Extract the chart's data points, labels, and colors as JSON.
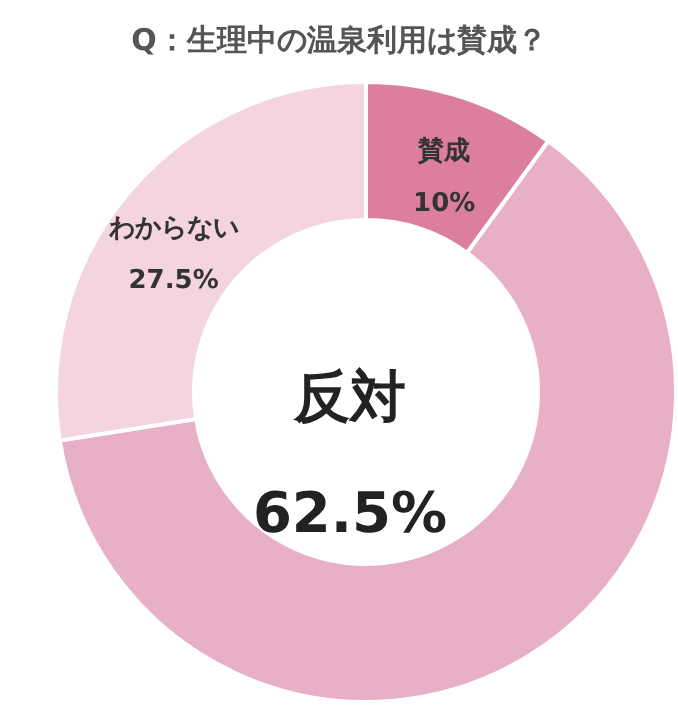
{
  "chart_data": {
    "type": "donut",
    "title": "Q：生理中の温泉利用は賛成？",
    "categories": [
      "賛成",
      "反対",
      "わからない"
    ],
    "values": [
      10,
      62.5,
      27.5
    ],
    "value_labels": [
      "10%",
      "62.5%",
      "27.5%"
    ],
    "colors": [
      "#dc7ea0",
      "#e8b0c7",
      "#f3d4e0"
    ]
  }
}
